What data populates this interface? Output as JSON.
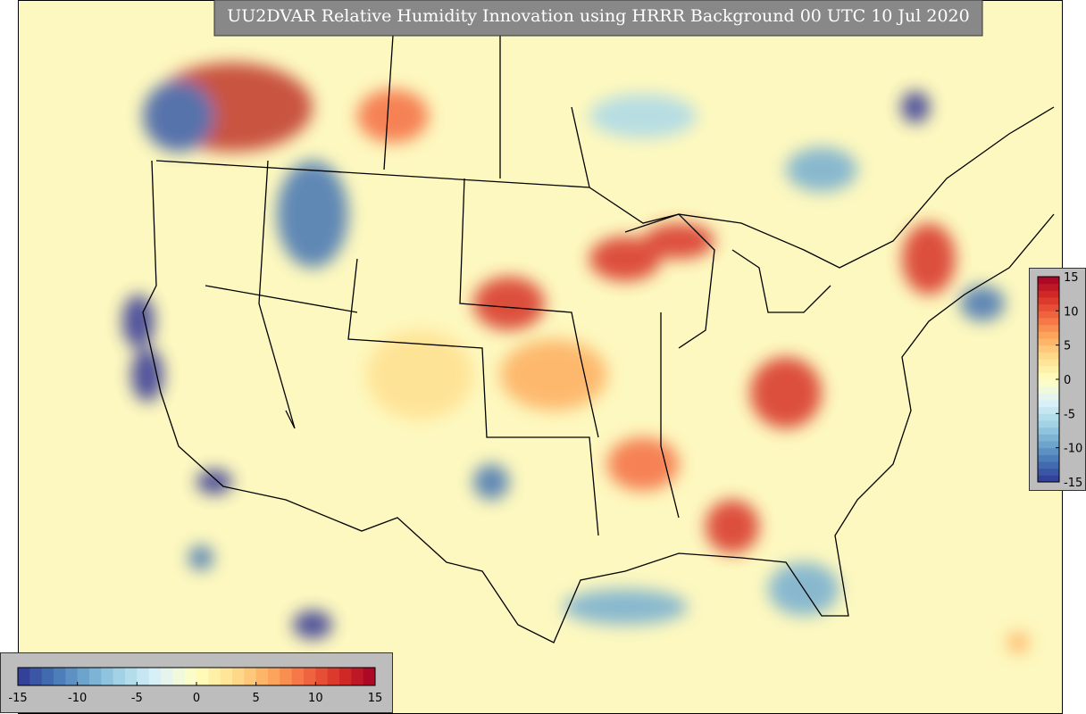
{
  "title": "UU2DVAR Relative Humidity Innovation using HRRR Background 00 UTC 10 Jul 2020",
  "colorbar": {
    "lim": [
      -15,
      15
    ],
    "ticks": [
      -15,
      -10,
      -5,
      0,
      5,
      10,
      15
    ],
    "colors": [
      "#313695",
      "#4575b4",
      "#74add1",
      "#abd9e9",
      "#e0f3f8",
      "#ffffbf",
      "#fee090",
      "#fdae61",
      "#f46d43",
      "#d73027",
      "#a50026"
    ]
  },
  "colorbar_side": {
    "lim": [
      -15,
      15
    ],
    "ticks": [
      -15,
      -10,
      -5,
      0,
      5,
      10,
      15
    ]
  }
}
